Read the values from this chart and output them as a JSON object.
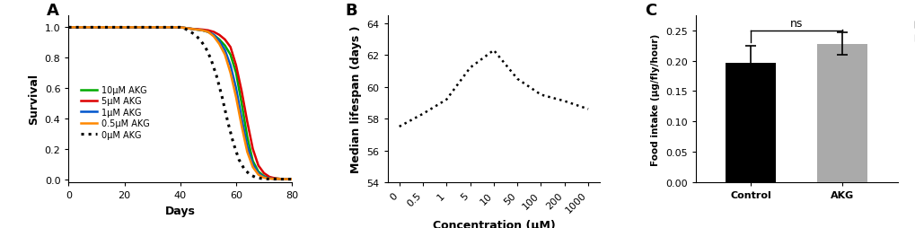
{
  "panel_A": {
    "label": "A",
    "xlabel": "Days",
    "ylabel": "Survival",
    "xlim": [
      0,
      80
    ],
    "ylim": [
      -0.02,
      1.08
    ],
    "xticks": [
      0,
      20,
      40,
      60,
      80
    ],
    "yticks": [
      0,
      0.2,
      0.4,
      0.6,
      0.8,
      1
    ],
    "lines": [
      {
        "label": "10μM AKG",
        "color": "#00aa00",
        "style": "solid",
        "lw": 1.8,
        "x": [
          0,
          40,
          42,
          44,
          46,
          48,
          50,
          52,
          54,
          56,
          58,
          60,
          62,
          64,
          66,
          68,
          70,
          72,
          74,
          76,
          78,
          80
        ],
        "y": [
          1,
          1,
          0.995,
          0.99,
          0.985,
          0.98,
          0.97,
          0.95,
          0.92,
          0.88,
          0.82,
          0.7,
          0.5,
          0.28,
          0.12,
          0.05,
          0.02,
          0.01,
          0.005,
          0.002,
          0.001,
          0
        ]
      },
      {
        "label": "5μM AKG",
        "color": "#dd0000",
        "style": "solid",
        "lw": 1.8,
        "x": [
          0,
          40,
          42,
          44,
          46,
          48,
          50,
          52,
          54,
          56,
          58,
          60,
          62,
          64,
          66,
          68,
          70,
          72,
          74,
          76,
          78,
          80
        ],
        "y": [
          1,
          1,
          0.995,
          0.99,
          0.988,
          0.985,
          0.98,
          0.97,
          0.95,
          0.92,
          0.87,
          0.75,
          0.58,
          0.38,
          0.2,
          0.09,
          0.04,
          0.015,
          0.006,
          0.002,
          0.001,
          0
        ]
      },
      {
        "label": "1μM AKG",
        "color": "#0055cc",
        "style": "solid",
        "lw": 1.8,
        "x": [
          0,
          40,
          42,
          44,
          46,
          48,
          50,
          52,
          54,
          56,
          58,
          60,
          62,
          64,
          66,
          68,
          70,
          72,
          74,
          76,
          78,
          80
        ],
        "y": [
          1,
          1,
          0.995,
          0.99,
          0.985,
          0.98,
          0.97,
          0.95,
          0.91,
          0.85,
          0.75,
          0.6,
          0.4,
          0.22,
          0.1,
          0.04,
          0.015,
          0.006,
          0.002,
          0.001,
          0.0005,
          0
        ]
      },
      {
        "label": "0.5μM AKG",
        "color": "#ff8800",
        "style": "solid",
        "lw": 1.8,
        "x": [
          0,
          40,
          42,
          44,
          46,
          48,
          50,
          52,
          54,
          56,
          58,
          60,
          62,
          64,
          66,
          68,
          70,
          72,
          74,
          76,
          78,
          80
        ],
        "y": [
          1,
          1,
          0.995,
          0.99,
          0.985,
          0.98,
          0.97,
          0.94,
          0.89,
          0.82,
          0.7,
          0.54,
          0.35,
          0.18,
          0.08,
          0.03,
          0.01,
          0.004,
          0.002,
          0.001,
          0.0005,
          0
        ]
      },
      {
        "label": "0μM AKG",
        "color": "#000000",
        "style": "dotted",
        "lw": 2.2,
        "x": [
          0,
          40,
          41,
          42,
          43,
          45,
          47,
          49,
          51,
          53,
          55,
          57,
          59,
          61,
          63,
          65,
          67,
          69,
          71,
          73,
          75,
          77,
          80
        ],
        "y": [
          1,
          1,
          0.995,
          0.988,
          0.978,
          0.955,
          0.92,
          0.87,
          0.79,
          0.68,
          0.54,
          0.38,
          0.24,
          0.13,
          0.065,
          0.03,
          0.012,
          0.005,
          0.002,
          0.001,
          0.0005,
          0.0002,
          0
        ]
      }
    ]
  },
  "panel_B": {
    "label": "B",
    "xlabel": "Concentration (μM)",
    "ylabel": "Median lifespan (days )",
    "ylim": [
      54,
      64.5
    ],
    "yticks": [
      54,
      56,
      58,
      60,
      62,
      64
    ],
    "xticklabels": [
      "0",
      "0.5",
      "1",
      "5",
      "10",
      "50",
      "100",
      "200",
      "1000"
    ],
    "x_positions": [
      0,
      1.0,
      2.0,
      3.0,
      4.0,
      5.0,
      6.0,
      7.0,
      8.0
    ],
    "y_values": [
      57.5,
      58.3,
      59.2,
      61.2,
      62.3,
      60.5,
      59.5,
      59.1,
      58.6
    ]
  },
  "panel_C": {
    "label": "C",
    "xlabel_categories": [
      "Control",
      "AKG"
    ],
    "ylabel": "Food intake (μg/fly/hour)",
    "ylim": [
      0,
      0.275
    ],
    "yticks": [
      0.0,
      0.05,
      0.1,
      0.15,
      0.2,
      0.25
    ],
    "bar_values": [
      0.197,
      0.228
    ],
    "bar_errors": [
      0.028,
      0.018
    ],
    "bar_colors": [
      "#000000",
      "#aaaaaa"
    ],
    "ns_text": "ns",
    "legend_labels": [
      "Control",
      "AKG"
    ],
    "legend_colors": [
      "#000000",
      "#aaaaaa"
    ]
  }
}
